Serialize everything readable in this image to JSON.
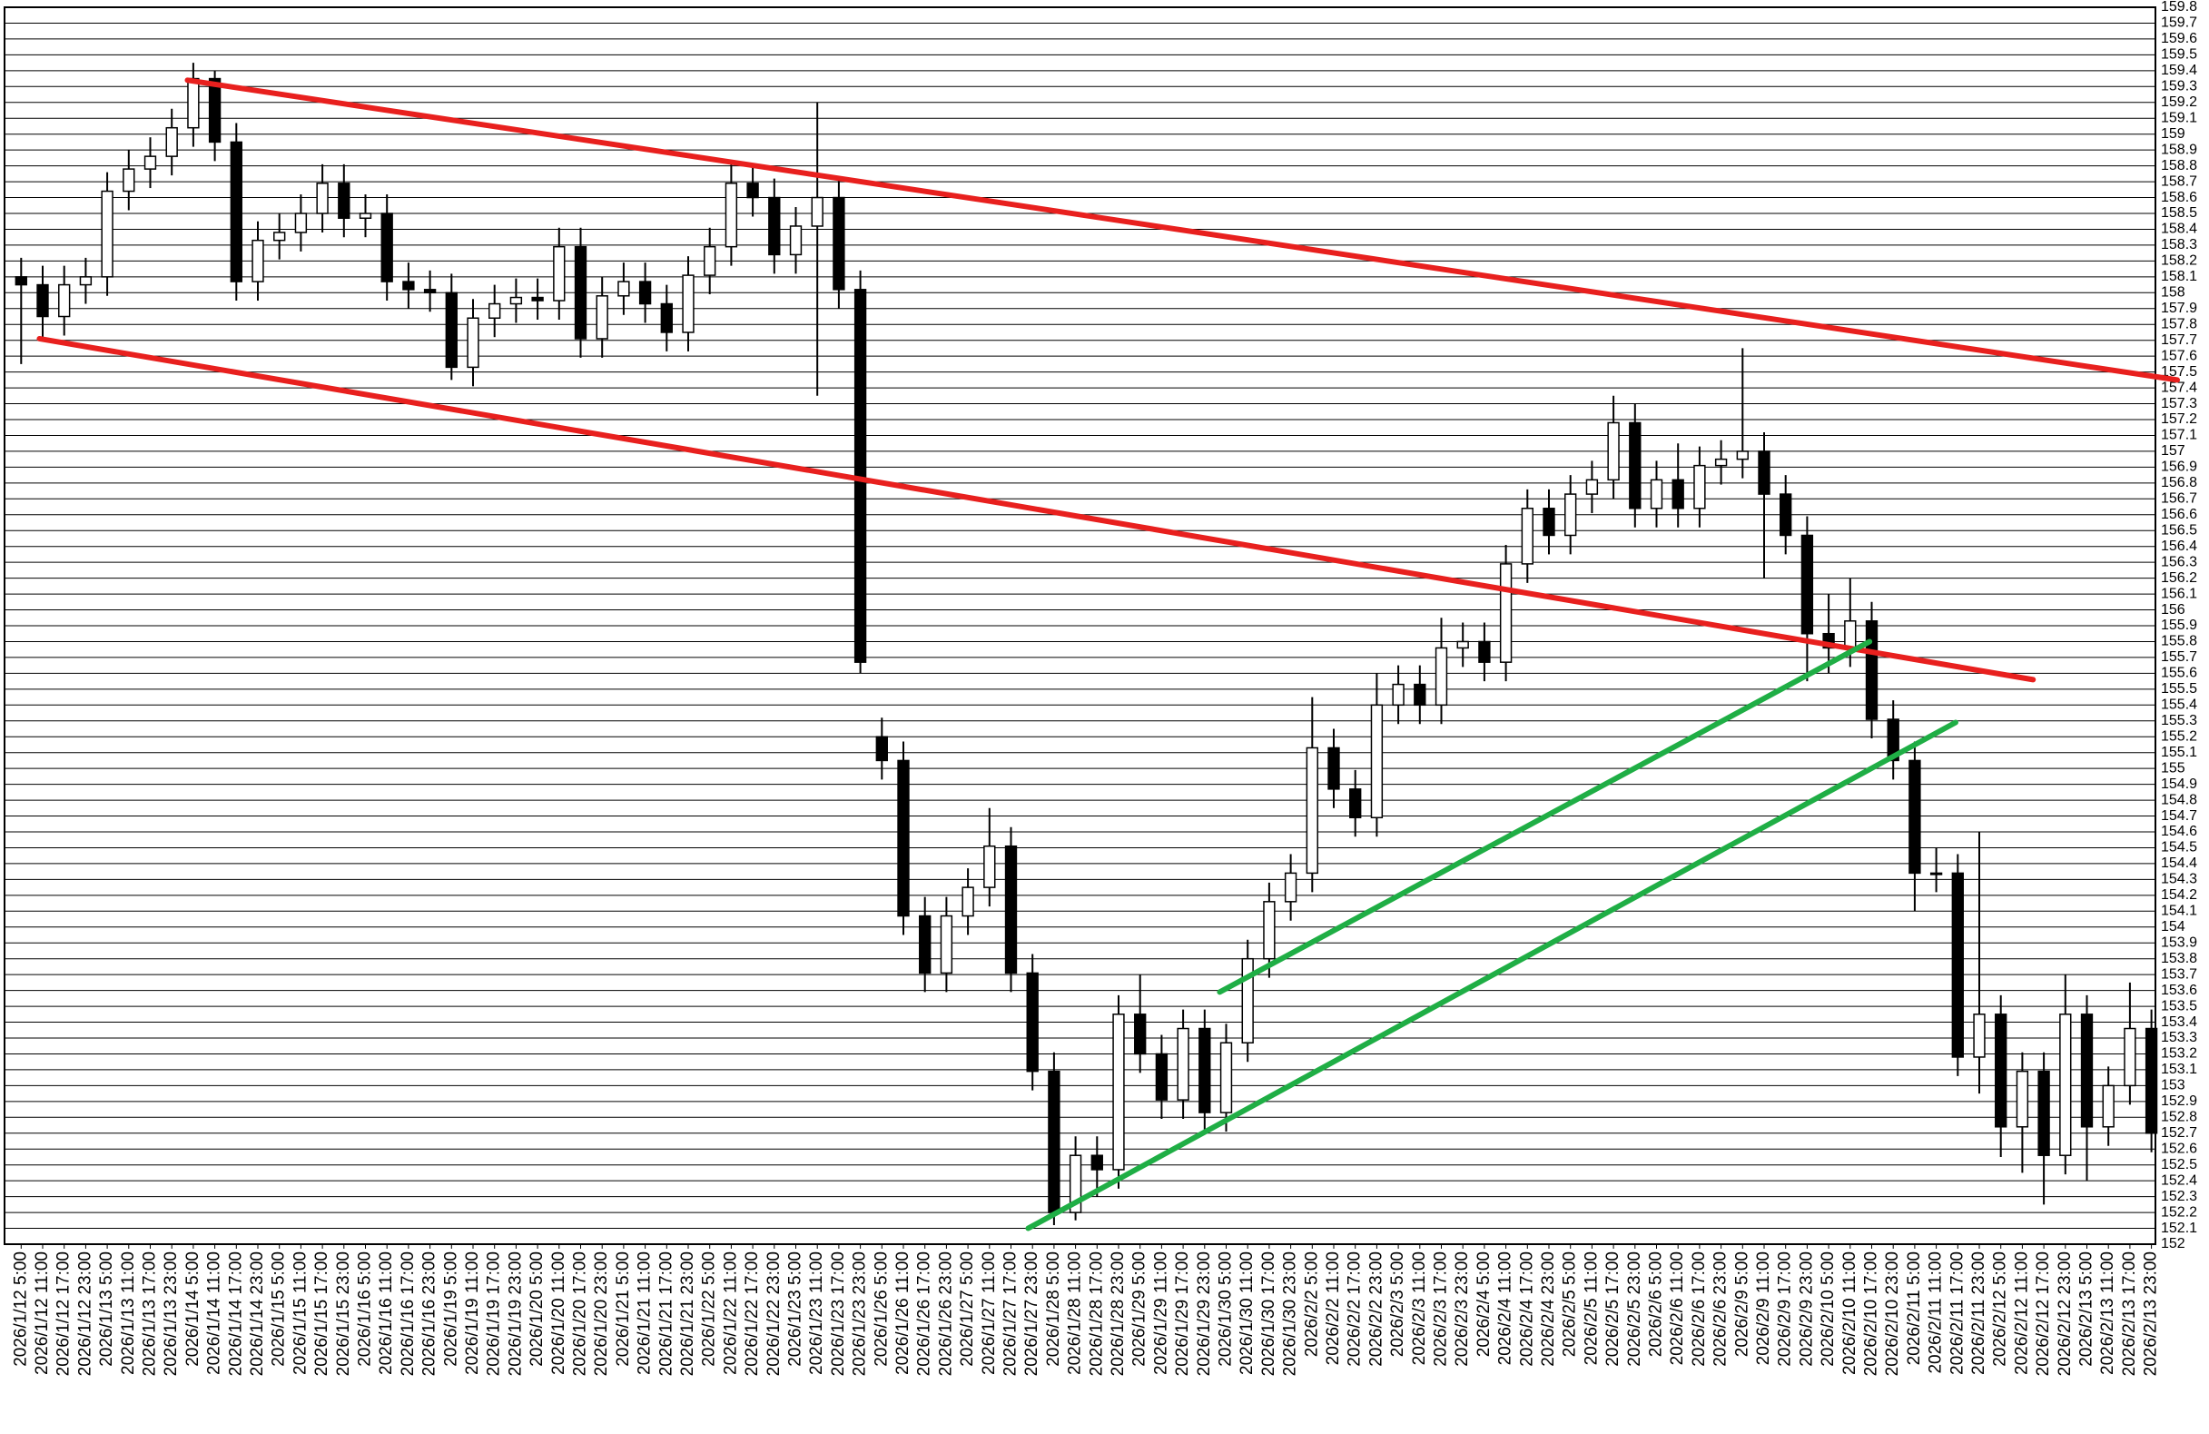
{
  "chart_data": {
    "type": "candlestick",
    "categories": [
      "2026/1/12 5:00",
      "2026/1/12 11:00",
      "2026/1/12 17:00",
      "2026/1/12 23:00",
      "2026/1/13 5:00",
      "2026/1/13 11:00",
      "2026/1/13 17:00",
      "2026/1/13 23:00",
      "2026/1/14 5:00",
      "2026/1/14 11:00",
      "2026/1/14 17:00",
      "2026/1/14 23:00",
      "2026/1/15 5:00",
      "2026/1/15 11:00",
      "2026/1/15 17:00",
      "2026/1/15 23:00",
      "2026/1/16 5:00",
      "2026/1/16 11:00",
      "2026/1/16 17:00",
      "2026/1/16 23:00",
      "2026/1/19 5:00",
      "2026/1/19 11:00",
      "2026/1/19 17:00",
      "2026/1/19 23:00",
      "2026/1/20 5:00",
      "2026/1/20 11:00",
      "2026/1/20 17:00",
      "2026/1/20 23:00",
      "2026/1/21 5:00",
      "2026/1/21 11:00",
      "2026/1/21 17:00",
      "2026/1/21 23:00",
      "2026/1/22 5:00",
      "2026/1/22 11:00",
      "2026/1/22 17:00",
      "2026/1/22 23:00",
      "2026/1/23 5:00",
      "2026/1/23 11:00",
      "2026/1/23 17:00",
      "2026/1/23 23:00",
      "2026/1/26 5:00",
      "2026/1/26 11:00",
      "2026/1/26 17:00",
      "2026/1/26 23:00",
      "2026/1/27 5:00",
      "2026/1/27 11:00",
      "2026/1/27 17:00",
      "2026/1/27 23:00",
      "2026/1/28 5:00",
      "2026/1/28 11:00",
      "2026/1/28 17:00",
      "2026/1/28 23:00",
      "2026/1/29 5:00",
      "2026/1/29 11:00",
      "2026/1/29 17:00",
      "2026/1/29 23:00",
      "2026/1/30 5:00",
      "2026/1/30 11:00",
      "2026/1/30 17:00",
      "2026/1/30 23:00",
      "2026/2/2 5:00",
      "2026/2/2 11:00",
      "2026/2/2 17:00",
      "2026/2/2 23:00",
      "2026/2/3 5:00",
      "2026/2/3 11:00",
      "2026/2/3 17:00",
      "2026/2/3 23:00",
      "2026/2/4 5:00",
      "2026/2/4 11:00",
      "2026/2/4 17:00",
      "2026/2/4 23:00",
      "2026/2/5 5:00",
      "2026/2/5 11:00",
      "2026/2/5 17:00",
      "2026/2/5 23:00",
      "2026/2/6 5:00",
      "2026/2/6 11:00",
      "2026/2/6 17:00",
      "2026/2/6 23:00",
      "2026/2/9 5:00",
      "2026/2/9 11:00",
      "2026/2/9 17:00",
      "2026/2/9 23:00",
      "2026/2/10 5:00",
      "2026/2/10 11:00",
      "2026/2/10 17:00",
      "2026/2/10 23:00",
      "2026/2/11 5:00",
      "2026/2/11 11:00",
      "2026/2/11 17:00",
      "2026/2/11 23:00",
      "2026/2/12 5:00",
      "2026/2/12 11:00",
      "2026/2/12 17:00",
      "2026/2/12 23:00",
      "2026/2/13 5:00",
      "2026/2/13 11:00",
      "2026/2/13 17:00",
      "2026/2/13 23:00"
    ],
    "open": [
      158.1,
      158.05,
      157.85,
      158.05,
      158.1,
      158.64,
      158.78,
      158.86,
      159.04,
      159.35,
      158.95,
      158.07,
      158.33,
      158.38,
      158.5,
      158.69,
      158.47,
      158.5,
      158.07,
      158.02,
      158.0,
      157.53,
      157.84,
      157.93,
      157.97,
      157.95,
      158.29,
      157.71,
      157.98,
      158.07,
      157.93,
      157.75,
      158.11,
      158.29,
      158.69,
      158.6,
      158.24,
      158.42,
      158.6,
      158.02,
      155.2,
      155.05,
      154.07,
      153.71,
      154.07,
      154.25,
      154.51,
      153.71,
      153.09,
      152.2,
      152.56,
      152.47,
      153.45,
      153.2,
      152.91,
      153.36,
      152.83,
      153.27,
      153.8,
      154.16,
      154.34,
      155.13,
      154.87,
      154.69,
      155.4,
      155.53,
      155.4,
      155.76,
      155.8,
      155.67,
      156.29,
      156.64,
      156.47,
      156.73,
      156.82,
      157.18,
      156.64,
      156.82,
      156.64,
      156.91,
      156.95,
      157.0,
      156.73,
      156.47,
      155.85,
      155.76,
      155.93,
      155.31,
      155.05,
      154.34,
      154.34,
      153.18,
      153.45,
      152.74,
      153.09,
      152.56,
      153.45,
      152.74,
      153.0,
      153.36
    ],
    "high": [
      158.22,
      158.17,
      158.17,
      158.22,
      158.76,
      158.9,
      158.98,
      159.16,
      159.45,
      159.4,
      159.07,
      158.45,
      158.5,
      158.62,
      158.81,
      158.81,
      158.62,
      158.62,
      158.19,
      158.14,
      158.12,
      157.96,
      158.05,
      158.09,
      158.09,
      158.41,
      158.41,
      158.1,
      158.19,
      158.19,
      158.05,
      158.23,
      158.41,
      158.81,
      158.81,
      158.72,
      158.54,
      159.2,
      158.72,
      158.14,
      155.32,
      155.17,
      154.19,
      154.19,
      154.37,
      154.75,
      154.63,
      153.83,
      153.21,
      152.68,
      152.68,
      153.57,
      153.7,
      153.32,
      153.48,
      153.48,
      153.39,
      153.92,
      154.28,
      154.46,
      155.45,
      155.25,
      154.99,
      155.6,
      155.65,
      155.65,
      155.95,
      155.92,
      155.92,
      156.41,
      156.76,
      156.76,
      156.85,
      156.94,
      157.35,
      157.3,
      156.94,
      157.05,
      157.03,
      157.07,
      157.65,
      157.12,
      156.85,
      156.59,
      156.1,
      156.2,
      156.05,
      155.43,
      155.17,
      154.5,
      154.46,
      154.6,
      153.57,
      153.21,
      153.21,
      153.7,
      153.57,
      153.12,
      153.65,
      153.48
    ],
    "low": [
      157.55,
      157.7,
      157.73,
      157.93,
      157.98,
      158.52,
      158.66,
      158.74,
      158.92,
      158.83,
      157.95,
      157.95,
      158.21,
      158.26,
      158.38,
      158.35,
      158.35,
      157.95,
      157.9,
      157.88,
      157.45,
      157.41,
      157.72,
      157.81,
      157.83,
      157.83,
      157.59,
      157.59,
      157.86,
      157.81,
      157.63,
      157.63,
      157.99,
      158.17,
      158.48,
      158.12,
      158.12,
      157.35,
      157.9,
      155.6,
      154.93,
      153.95,
      153.59,
      153.59,
      153.95,
      154.13,
      153.59,
      152.97,
      152.12,
      152.15,
      152.3,
      152.35,
      153.08,
      152.79,
      152.79,
      152.71,
      152.71,
      153.15,
      153.68,
      154.04,
      154.22,
      154.75,
      154.57,
      154.57,
      155.28,
      155.28,
      155.28,
      155.64,
      155.55,
      155.55,
      156.17,
      156.35,
      156.35,
      156.61,
      156.7,
      156.52,
      156.52,
      156.52,
      156.52,
      156.79,
      156.83,
      156.2,
      156.35,
      155.55,
      155.6,
      155.64,
      155.19,
      154.93,
      154.1,
      154.22,
      153.06,
      152.95,
      152.55,
      152.45,
      152.25,
      152.44,
      152.4,
      152.62,
      152.88,
      152.58
    ],
    "close": [
      158.05,
      157.85,
      158.05,
      158.1,
      158.64,
      158.78,
      158.86,
      159.04,
      159.35,
      158.95,
      158.07,
      158.33,
      158.38,
      158.5,
      158.69,
      158.47,
      158.5,
      158.07,
      158.02,
      158.0,
      157.53,
      157.84,
      157.93,
      157.97,
      157.95,
      158.29,
      157.71,
      157.98,
      158.07,
      157.93,
      157.75,
      158.11,
      158.29,
      158.69,
      158.6,
      158.24,
      158.42,
      158.6,
      158.02,
      155.67,
      155.05,
      154.07,
      153.71,
      154.07,
      154.25,
      154.51,
      153.71,
      153.09,
      152.2,
      152.56,
      152.47,
      153.45,
      153.2,
      152.91,
      153.36,
      152.83,
      153.27,
      153.8,
      154.16,
      154.34,
      155.13,
      154.87,
      154.69,
      155.4,
      155.53,
      155.4,
      155.76,
      155.8,
      155.67,
      156.29,
      156.64,
      156.47,
      156.73,
      156.82,
      157.18,
      156.64,
      156.82,
      156.64,
      156.91,
      156.95,
      157.0,
      156.73,
      156.47,
      155.85,
      155.76,
      155.93,
      155.31,
      155.05,
      154.34,
      154.34,
      153.18,
      153.45,
      152.74,
      153.09,
      152.56,
      153.45,
      152.74,
      153.0,
      153.36,
      152.7
    ],
    "ylim": [
      152,
      159.8
    ],
    "yticks": [
      152,
      152.1,
      152.2,
      152.3,
      152.4,
      152.5,
      152.6,
      152.7,
      152.8,
      152.9,
      153,
      153.1,
      153.2,
      153.3,
      153.4,
      153.5,
      153.6,
      153.7,
      153.8,
      153.9,
      154,
      154.1,
      154.2,
      154.3,
      154.4,
      154.5,
      154.6,
      154.7,
      154.8,
      154.9,
      155,
      155.1,
      155.2,
      155.3,
      155.4,
      155.5,
      155.6,
      155.7,
      155.8,
      155.9,
      156,
      156.1,
      156.2,
      156.3,
      156.4,
      156.5,
      156.6,
      156.7,
      156.8,
      156.9,
      157,
      157.1,
      157.2,
      157.3,
      157.4,
      157.5,
      157.6,
      157.7,
      157.8,
      157.9,
      158,
      158.1,
      158.2,
      158.3,
      158.4,
      158.5,
      158.6,
      158.7,
      158.8,
      158.9,
      159,
      159.1,
      159.2,
      159.3,
      159.4,
      159.5,
      159.6,
      159.7,
      159.8
    ],
    "grid": true,
    "trendlines": [
      {
        "color": "#e8201e",
        "x": [
          7.73,
          100.2
        ],
        "y": [
          159.34,
          157.45
        ]
      },
      {
        "color": "#e8201e",
        "x": [
          0.85,
          93.5
        ],
        "y": [
          157.71,
          155.56
        ]
      },
      {
        "color": "#1fae45",
        "x": [
          46.8,
          89.9
        ],
        "y": [
          152.1,
          155.29
        ]
      },
      {
        "color": "#1fae45",
        "x": [
          55.7,
          85.9
        ],
        "y": [
          153.59,
          155.8
        ]
      }
    ]
  }
}
